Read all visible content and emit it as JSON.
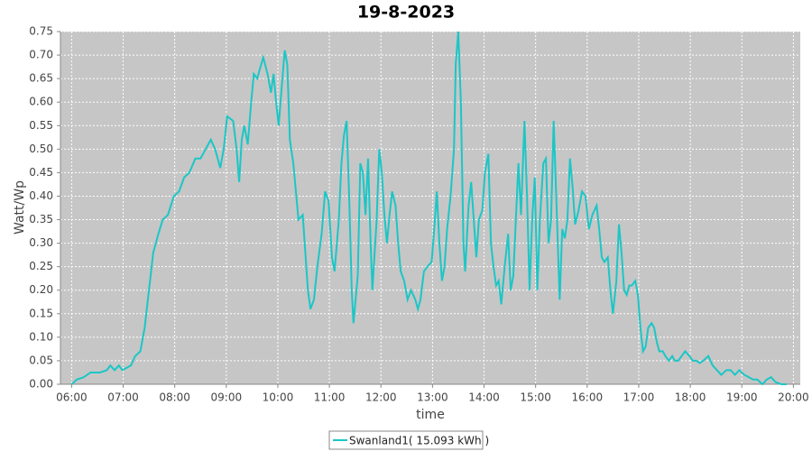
{
  "chart_data": {
    "type": "line",
    "title": "19-8-2023",
    "x_label": "time",
    "y_label": "Watt/Wp",
    "x": [
      360,
      366,
      374,
      382,
      393,
      401,
      405,
      410,
      415,
      419,
      424,
      429,
      434,
      440,
      445,
      450,
      455,
      461,
      466,
      472,
      479,
      485,
      491,
      497,
      504,
      510,
      516,
      522,
      527,
      533,
      537,
      541,
      548,
      552,
      555,
      558,
      561,
      565,
      569,
      572,
      576,
      579,
      583,
      588,
      592,
      595,
      598,
      601,
      604,
      608,
      611,
      614,
      618,
      621,
      624,
      629,
      632,
      635,
      638,
      642,
      646,
      651,
      655,
      659,
      663,
      666,
      671,
      674,
      677,
      680,
      683,
      686,
      688,
      693,
      696,
      699,
      702,
      705,
      708,
      710,
      715,
      718,
      721,
      724,
      727,
      730,
      733,
      737,
      740,
      743,
      747,
      751,
      755,
      760,
      763,
      766,
      770,
      774,
      779,
      782,
      785,
      788,
      791,
      794,
      797,
      801,
      805,
      807,
      810,
      813,
      816,
      818,
      822,
      825,
      828,
      831,
      834,
      838,
      841,
      845,
      848,
      851,
      854,
      857,
      860,
      864,
      868,
      871,
      874,
      877,
      880,
      883,
      887,
      890,
      893,
      896,
      899,
      902,
      905,
      909,
      912,
      915,
      918,
      921,
      924,
      928,
      931,
      934,
      937,
      940,
      943,
      946,
      950,
      954,
      958,
      962,
      966,
      971,
      974,
      977,
      980,
      984,
      987,
      990,
      994,
      997,
      1000,
      1003,
      1006,
      1009,
      1012,
      1016,
      1019,
      1022,
      1025,
      1028,
      1031,
      1035,
      1038,
      1041,
      1044,
      1048,
      1051,
      1055,
      1059,
      1062,
      1066,
      1070,
      1074,
      1079,
      1083,
      1087,
      1091,
      1095,
      1101,
      1106,
      1111,
      1116,
      1122,
      1127,
      1132,
      1137,
      1143,
      1148,
      1153,
      1158,
      1164,
      1169,
      1174,
      1179,
      1186,
      1192
    ],
    "series": [
      {
        "name": "Swanland1( 15.093 kWh )",
        "color": "#1cc6c6",
        "values": [
          0,
          0.01,
          0.015,
          0.025,
          0.025,
          0.03,
          0.04,
          0.03,
          0.04,
          0.03,
          0.035,
          0.04,
          0.06,
          0.07,
          0.12,
          0.2,
          0.28,
          0.32,
          0.35,
          0.36,
          0.4,
          0.41,
          0.44,
          0.45,
          0.48,
          0.48,
          0.5,
          0.52,
          0.5,
          0.46,
          0.5,
          0.57,
          0.56,
          0.5,
          0.43,
          0.52,
          0.55,
          0.51,
          0.6,
          0.66,
          0.65,
          0.67,
          0.695,
          0.66,
          0.62,
          0.66,
          0.6,
          0.55,
          0.62,
          0.71,
          0.68,
          0.52,
          0.47,
          0.41,
          0.35,
          0.36,
          0.28,
          0.2,
          0.16,
          0.18,
          0.25,
          0.32,
          0.41,
          0.39,
          0.27,
          0.24,
          0.35,
          0.47,
          0.53,
          0.56,
          0.4,
          0.2,
          0.13,
          0.23,
          0.47,
          0.45,
          0.36,
          0.48,
          0.3,
          0.2,
          0.35,
          0.5,
          0.45,
          0.36,
          0.3,
          0.36,
          0.41,
          0.38,
          0.3,
          0.24,
          0.22,
          0.18,
          0.2,
          0.18,
          0.16,
          0.18,
          0.24,
          0.25,
          0.26,
          0.33,
          0.41,
          0.3,
          0.22,
          0.25,
          0.33,
          0.4,
          0.5,
          0.68,
          0.75,
          0.6,
          0.3,
          0.24,
          0.38,
          0.43,
          0.35,
          0.27,
          0.35,
          0.37,
          0.45,
          0.49,
          0.3,
          0.25,
          0.21,
          0.22,
          0.17,
          0.25,
          0.32,
          0.2,
          0.23,
          0.35,
          0.47,
          0.36,
          0.56,
          0.4,
          0.2,
          0.35,
          0.44,
          0.2,
          0.35,
          0.47,
          0.48,
          0.3,
          0.35,
          0.56,
          0.4,
          0.18,
          0.33,
          0.31,
          0.35,
          0.48,
          0.42,
          0.34,
          0.37,
          0.41,
          0.4,
          0.33,
          0.36,
          0.38,
          0.33,
          0.27,
          0.26,
          0.27,
          0.2,
          0.15,
          0.22,
          0.34,
          0.28,
          0.2,
          0.19,
          0.21,
          0.21,
          0.22,
          0.19,
          0.12,
          0.07,
          0.08,
          0.12,
          0.13,
          0.12,
          0.09,
          0.07,
          0.07,
          0.06,
          0.05,
          0.06,
          0.05,
          0.05,
          0.06,
          0.07,
          0.06,
          0.05,
          0.05,
          0.045,
          0.05,
          0.06,
          0.04,
          0.03,
          0.02,
          0.03,
          0.03,
          0.02,
          0.03,
          0.02,
          0.015,
          0.01,
          0.01,
          0,
          0.01,
          0.015,
          0.005,
          0,
          0
        ]
      }
    ],
    "xlim": [
      347,
      1208
    ],
    "xticks": [
      {
        "value": 360,
        "label": "06:00"
      },
      {
        "value": 420,
        "label": "07:00"
      },
      {
        "value": 480,
        "label": "08:00"
      },
      {
        "value": 540,
        "label": "09:00"
      },
      {
        "value": 600,
        "label": "10:00"
      },
      {
        "value": 660,
        "label": "11:00"
      },
      {
        "value": 720,
        "label": "12:00"
      },
      {
        "value": 780,
        "label": "13:00"
      },
      {
        "value": 840,
        "label": "14:00"
      },
      {
        "value": 900,
        "label": "15:00"
      },
      {
        "value": 960,
        "label": "16:00"
      },
      {
        "value": 1020,
        "label": "17:00"
      },
      {
        "value": 1080,
        "label": "18:00"
      },
      {
        "value": 1140,
        "label": "19:00"
      },
      {
        "value": 1200,
        "label": "20:00"
      }
    ],
    "ylim": [
      0,
      0.75
    ],
    "yticks": [
      {
        "value": 0,
        "label": "0.00"
      },
      {
        "value": 0.05,
        "label": "0.05"
      },
      {
        "value": 0.1,
        "label": "0.10"
      },
      {
        "value": 0.15,
        "label": "0.15"
      },
      {
        "value": 0.2,
        "label": "0.20"
      },
      {
        "value": 0.25,
        "label": "0.25"
      },
      {
        "value": 0.3,
        "label": "0.30"
      },
      {
        "value": 0.35,
        "label": "0.35"
      },
      {
        "value": 0.4,
        "label": "0.40"
      },
      {
        "value": 0.45,
        "label": "0.45"
      },
      {
        "value": 0.5,
        "label": "0.50"
      },
      {
        "value": 0.55,
        "label": "0.55"
      },
      {
        "value": 0.6,
        "label": "0.60"
      },
      {
        "value": 0.65,
        "label": "0.65"
      },
      {
        "value": 0.7,
        "label": "0.70"
      },
      {
        "value": 0.75,
        "label": "0.75"
      }
    ],
    "grid": true
  }
}
